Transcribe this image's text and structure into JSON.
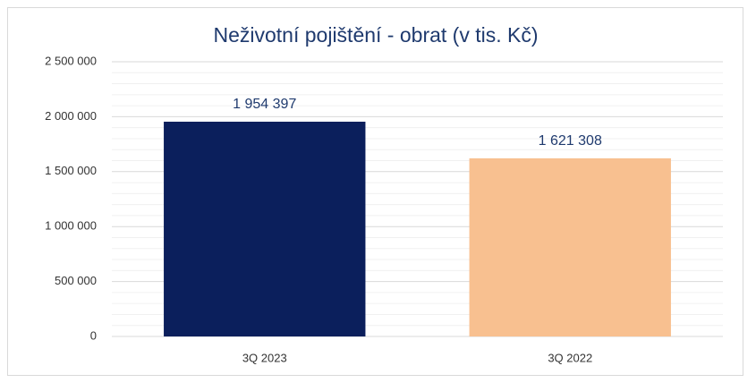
{
  "chart_data": {
    "type": "bar",
    "title": "Neživotní pojištění  - obrat (v tis. Kč)",
    "categories": [
      "3Q 2023",
      "3Q 2022"
    ],
    "values": [
      1954397,
      1621308
    ],
    "value_labels": [
      "1 954 397",
      "1 621 308"
    ],
    "colors": [
      "#0b1f5c",
      "#f8c090"
    ],
    "ylim": [
      0,
      2500000
    ],
    "yticks": [
      0,
      {
        "value": 500000,
        "label": "500 000"
      },
      {
        "value": 1000000,
        "label": "1 000 000"
      },
      {
        "value": 1500000,
        "label": "1 500 000"
      },
      {
        "value": 2000000,
        "label": "2 000 000"
      },
      {
        "value": 2500000,
        "label": "2 500 000"
      }
    ],
    "grid": true
  }
}
